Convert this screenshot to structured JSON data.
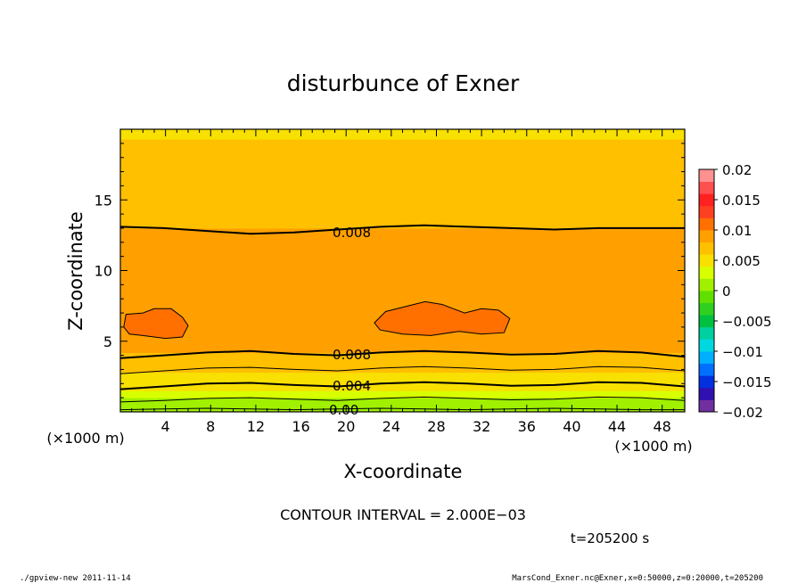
{
  "chart_data": {
    "type": "heatmap",
    "title": "disturbunce of Exner",
    "xlabel": "X-coordinate",
    "ylabel": "Z-coordinate",
    "x_unit": "(×1000 m)",
    "xlim": [
      0,
      50
    ],
    "ylim": [
      0,
      20
    ],
    "x_ticks": [
      4,
      8,
      12,
      16,
      20,
      24,
      28,
      32,
      36,
      40,
      44,
      48
    ],
    "x_tick_labels": [
      "4",
      "8",
      "12",
      "16",
      "20",
      "24",
      "28",
      "32",
      "36",
      "40",
      "44",
      "48"
    ],
    "y_ticks": [
      5,
      10,
      15
    ],
    "y_tick_labels": [
      "5",
      "10",
      "15"
    ],
    "colorbar": {
      "min": -0.02,
      "max": 0.02,
      "ticks": [
        0.02,
        0.015,
        0.01,
        0.005,
        0,
        -0.005,
        -0.01,
        -0.015,
        -0.02
      ],
      "tick_labels": [
        "0.02",
        "0.015",
        "0.01",
        "0.005",
        "0",
        "−0.005",
        "−0.01",
        "−0.015",
        "−0.02"
      ],
      "colors": [
        "#7030a0",
        "#3010b0",
        "#0030e0",
        "#0070ff",
        "#00b0ff",
        "#00d8e0",
        "#00d0a0",
        "#00c040",
        "#30d020",
        "#60e000",
        "#a0f000",
        "#d8ff00",
        "#f8e000",
        "#ffc000",
        "#ffa000",
        "#ff7000",
        "#ff4020",
        "#ff2020",
        "#ff5050",
        "#ff9090"
      ]
    },
    "bands": [
      {
        "z_bottom": 0.0,
        "z_top": 0.5,
        "value": 0.001
      },
      {
        "z_bottom": 0.5,
        "z_top": 1.0,
        "value": 0.002
      },
      {
        "z_bottom": 1.0,
        "z_top": 1.5,
        "value": 0.003
      },
      {
        "z_bottom": 1.5,
        "z_top": 2.1,
        "value": 0.004
      },
      {
        "z_bottom": 2.1,
        "z_top": 2.8,
        "value": 0.005
      },
      {
        "z_bottom": 2.8,
        "z_top": 3.4,
        "value": 0.006
      },
      {
        "z_bottom": 3.4,
        "z_top": 4.2,
        "value": 0.007
      },
      {
        "z_bottom": 4.2,
        "z_top": 4.7,
        "value": 0.008
      },
      {
        "z_bottom": 4.7,
        "z_top": 8.3,
        "value": 0.009
      },
      {
        "z_bottom": 8.3,
        "z_top": 13.0,
        "value": 0.008
      },
      {
        "z_bottom": 13.0,
        "z_top": 16.7,
        "value": 0.007
      },
      {
        "z_bottom": 16.7,
        "z_top": 19.3,
        "value": 0.006
      },
      {
        "z_bottom": 19.3,
        "z_top": 20.0,
        "value": 0.005
      }
    ],
    "contours": [
      {
        "value": 0.0,
        "z": [
          0.15,
          0.2,
          0.25,
          0.2,
          0.15,
          0.2,
          0.25,
          0.2,
          0.15,
          0.2,
          0.25,
          0.2,
          0.15,
          0.15
        ]
      },
      {
        "value": 0.002,
        "z": [
          0.7,
          0.8,
          0.95,
          1.0,
          0.9,
          0.8,
          0.95,
          1.05,
          0.95,
          0.85,
          0.9,
          1.05,
          1.0,
          0.8
        ]
      },
      {
        "value": 0.004,
        "z": [
          1.6,
          1.8,
          2.0,
          2.05,
          1.9,
          1.8,
          2.0,
          2.1,
          2.0,
          1.85,
          1.9,
          2.1,
          2.05,
          1.8
        ]
      },
      {
        "value": 0.006,
        "z": [
          2.7,
          2.9,
          3.1,
          3.15,
          3.0,
          2.9,
          3.1,
          3.2,
          3.1,
          2.95,
          3.0,
          3.2,
          3.15,
          2.9
        ]
      },
      {
        "value": 0.008,
        "z": [
          3.8,
          4.0,
          4.2,
          4.3,
          4.1,
          4.0,
          4.2,
          4.3,
          4.2,
          4.05,
          4.1,
          4.3,
          4.2,
          3.9
        ]
      },
      {
        "value": 0.008,
        "z": [
          13.1,
          13.0,
          12.8,
          12.6,
          12.7,
          12.9,
          13.1,
          13.2,
          13.1,
          13.0,
          12.9,
          13.0,
          13.0,
          13.0
        ]
      }
    ],
    "contour_labels": [
      {
        "text": "0.008",
        "x": 20.5,
        "z": 12.75
      },
      {
        "text": "0.008",
        "x": 20.5,
        "z": 4.1
      },
      {
        "text": "0.004",
        "x": 20.5,
        "z": 1.9
      },
      {
        "text": "0.00",
        "x": 19.8,
        "z": 0.2
      }
    ],
    "blobs": [
      {
        "name": "left-blob",
        "points": [
          [
            0.3,
            6.0
          ],
          [
            0.5,
            6.9
          ],
          [
            2.0,
            7.0
          ],
          [
            3.0,
            7.3
          ],
          [
            4.5,
            7.3
          ],
          [
            5.5,
            6.7
          ],
          [
            6.0,
            6.1
          ],
          [
            5.5,
            5.3
          ],
          [
            4.0,
            5.2
          ],
          [
            2.0,
            5.4
          ],
          [
            0.8,
            5.5
          ]
        ]
      },
      {
        "name": "center-blob",
        "points": [
          [
            22.5,
            6.3
          ],
          [
            23.5,
            7.1
          ],
          [
            25.5,
            7.5
          ],
          [
            27.0,
            7.8
          ],
          [
            28.5,
            7.6
          ],
          [
            30.5,
            7.0
          ],
          [
            32.0,
            7.3
          ],
          [
            33.5,
            7.2
          ],
          [
            34.5,
            6.6
          ],
          [
            34.0,
            5.6
          ],
          [
            32.0,
            5.5
          ],
          [
            30.0,
            5.7
          ],
          [
            27.5,
            5.4
          ],
          [
            25.0,
            5.5
          ],
          [
            23.0,
            5.8
          ]
        ]
      }
    ],
    "contour_interval_text": "CONTOUR INTERVAL = 2.000E−03",
    "time_text": "t=205200 s",
    "footer_left": "./gpview-new  2011-11-14",
    "footer_right": "MarsCond_Exner.nc@Exner,x=0:50000,z=0:20000,t=205200"
  }
}
